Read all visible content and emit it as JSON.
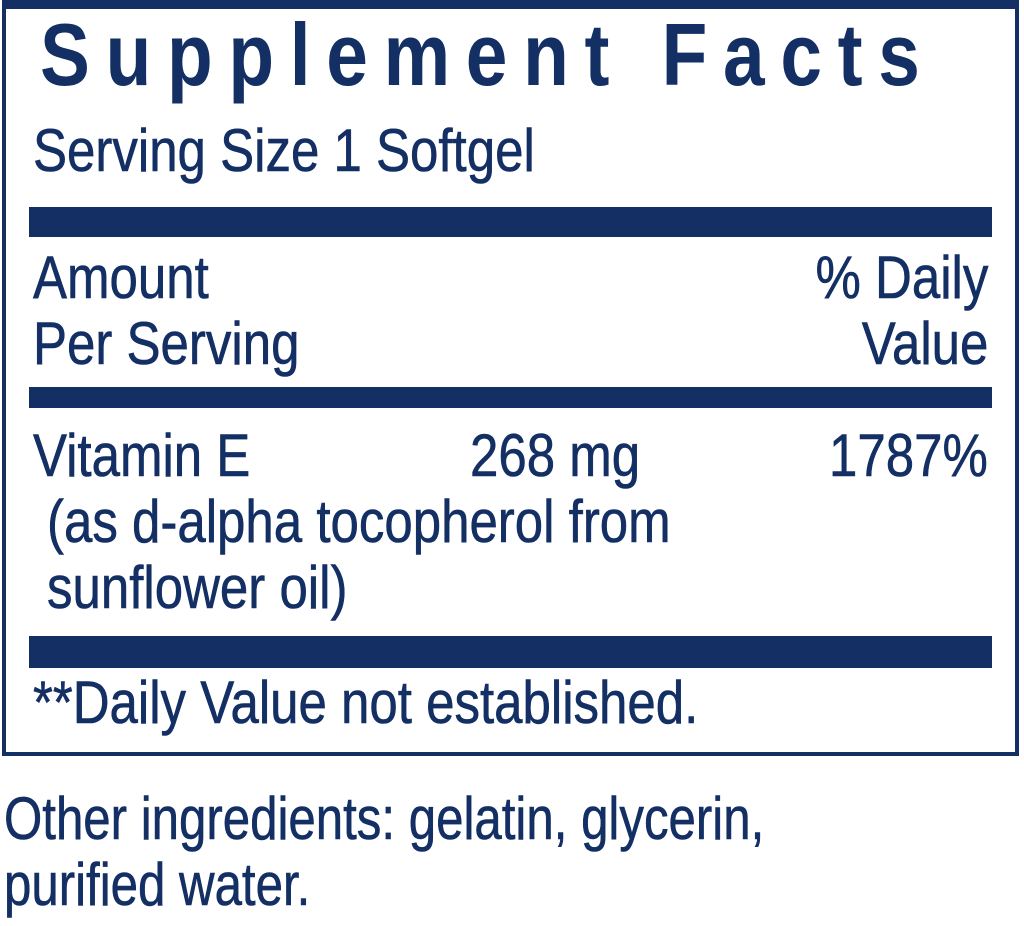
{
  "colors": {
    "navy": "#132f64",
    "background": "#ffffff"
  },
  "panel": {
    "title": "Supplement Facts",
    "serving_size": "Serving Size 1 Softgel",
    "header": {
      "amount_line1": "Amount",
      "amount_line2": "Per Serving",
      "dv_line1": "% Daily",
      "dv_line2": "Value"
    },
    "rows": [
      {
        "name": "Vitamin E",
        "amount": "268 mg",
        "daily_value": "1787%",
        "note_lines": [
          "(as d-alpha tocopherol from",
          "sunflower oil)"
        ]
      }
    ],
    "footnote": "**Daily Value not established."
  },
  "other": {
    "line1": "Other ingredients: gelatin, glycerin,",
    "line2": "purified water."
  }
}
